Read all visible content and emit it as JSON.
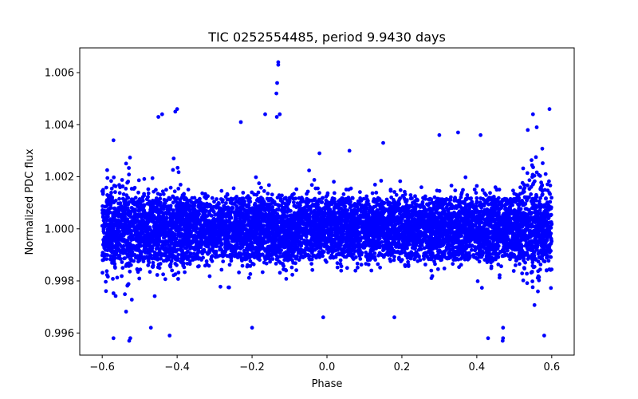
{
  "chart_data": {
    "type": "scatter",
    "title": "TIC 0252554485, period 9.9430 days",
    "xlabel": "Phase",
    "ylabel": "Normalized PDC flux",
    "xlim": [
      -0.66,
      0.66
    ],
    "ylim": [
      0.99515,
      1.00695
    ],
    "x_ticks": [
      -0.6,
      -0.4,
      -0.2,
      0.0,
      0.2,
      0.4,
      0.6
    ],
    "x_tick_labels": [
      "−0.6",
      "−0.4",
      "−0.2",
      "0.0",
      "0.2",
      "0.4",
      "0.6"
    ],
    "y_ticks": [
      0.996,
      0.998,
      1.0,
      1.002,
      1.004,
      1.006
    ],
    "y_tick_labels": [
      "0.996",
      "0.998",
      "1.000",
      "1.002",
      "1.004",
      "1.006"
    ],
    "grid": false,
    "series": [
      {
        "name": "PDC flux",
        "color": "#0000ff",
        "marker": "circle",
        "description_of_distribution": "dense band of points over phase -0.6 to 0.6, core roughly 0.9985 to 1.0015",
        "outliers": [
          {
            "x": -0.13,
            "y": 1.0064
          },
          {
            "x": -0.13,
            "y": 1.0063
          },
          {
            "x": -0.133,
            "y": 1.0056
          },
          {
            "x": -0.135,
            "y": 1.0052
          },
          {
            "x": -0.134,
            "y": 1.0043
          },
          {
            "x": -0.126,
            "y": 1.0044
          },
          {
            "x": -0.165,
            "y": 1.0044
          },
          {
            "x": -0.23,
            "y": 1.0041
          },
          {
            "x": -0.4,
            "y": 1.0046
          },
          {
            "x": -0.405,
            "y": 1.0045
          },
          {
            "x": -0.44,
            "y": 1.0044
          },
          {
            "x": -0.45,
            "y": 1.0043
          },
          {
            "x": 0.55,
            "y": 1.0044
          },
          {
            "x": 0.594,
            "y": 1.0046
          },
          {
            "x": -0.57,
            "y": 0.9958
          },
          {
            "x": -0.528,
            "y": 0.9957
          },
          {
            "x": -0.525,
            "y": 0.9958
          },
          {
            "x": -0.42,
            "y": 0.9959
          },
          {
            "x": 0.43,
            "y": 0.9958
          },
          {
            "x": 0.469,
            "y": 0.9957
          },
          {
            "x": 0.47,
            "y": 0.9958
          },
          {
            "x": 0.58,
            "y": 0.9959
          },
          {
            "x": 0.47,
            "y": 0.9962
          },
          {
            "x": -0.47,
            "y": 0.9962
          },
          {
            "x": -0.2,
            "y": 0.9962
          },
          {
            "x": -0.01,
            "y": 0.9966
          },
          {
            "x": 0.18,
            "y": 0.9966
          },
          {
            "x": -0.57,
            "y": 1.0034
          },
          {
            "x": 0.56,
            "y": 1.0039
          },
          {
            "x": -0.02,
            "y": 1.0029
          },
          {
            "x": 0.06,
            "y": 1.003
          },
          {
            "x": 0.15,
            "y": 1.0033
          },
          {
            "x": 0.3,
            "y": 1.0036
          },
          {
            "x": 0.35,
            "y": 1.0037
          },
          {
            "x": 0.41,
            "y": 1.0036
          }
        ]
      }
    ]
  }
}
